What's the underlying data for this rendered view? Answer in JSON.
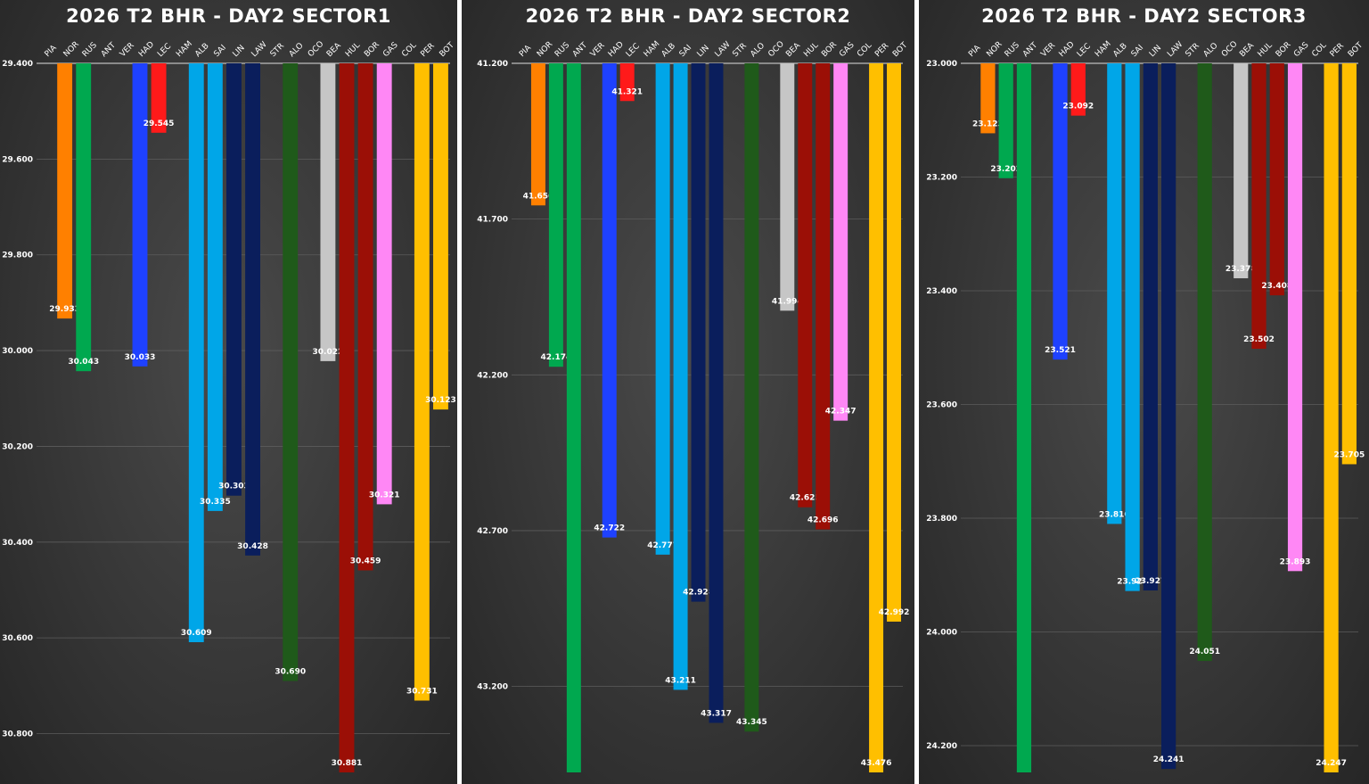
{
  "chart_data": [
    {
      "type": "bar",
      "title": "2026 T2 BHR - DAY2 SECTOR1",
      "categories": [
        "PIA",
        "NOR",
        "RUS",
        "ANT",
        "VER",
        "HAD",
        "LEC",
        "HAM",
        "ALB",
        "SAI",
        "LIN",
        "LAW",
        "STR",
        "ALO",
        "OCO",
        "BEA",
        "HUL",
        "BOR",
        "GAS",
        "COL",
        "PER",
        "BOT"
      ],
      "values": [
        null,
        29.933,
        30.043,
        null,
        null,
        30.033,
        29.545,
        null,
        30.609,
        30.335,
        30.303,
        30.428,
        null,
        30.69,
        null,
        30.022,
        30.881,
        30.459,
        30.321,
        null,
        30.731,
        30.123
      ],
      "value_labels": [
        "",
        "29.933",
        "30.043",
        "",
        "",
        "30.033",
        "29.545",
        "",
        "30.609",
        "30.335",
        "30.303",
        "30.428",
        "",
        "30.690",
        "",
        "30.022",
        "30.881",
        "30.459",
        "30.321",
        "",
        "30.731",
        "30.123"
      ],
      "colors": [
        "#ff8000",
        "#ff8000",
        "#00a84f",
        "#00a84f",
        "#1e41ff",
        "#1e41ff",
        "#ff1a1a",
        "#ff1a1a",
        "#00a6e8",
        "#00a6e8",
        "#0a1e5c",
        "#0a1e5c",
        "#1f5a1a",
        "#1f5a1a",
        "#c6c6c6",
        "#c6c6c6",
        "#9b0f06",
        "#9b0f06",
        "#ff87f5",
        "#ff87f5",
        "#ffbf00",
        "#ffbf00"
      ],
      "ylim": [
        29.4,
        30.881
      ],
      "yticks": [
        "29.400",
        "29.600",
        "29.800",
        "30.000",
        "30.200",
        "30.400",
        "30.600",
        "30.800"
      ],
      "y_inverted": true,
      "grid": true
    },
    {
      "type": "bar",
      "title": "2026 T2 BHR - DAY2 SECTOR2",
      "categories": [
        "PIA",
        "NOR",
        "RUS",
        "ANT",
        "VER",
        "HAD",
        "LEC",
        "HAM",
        "ALB",
        "SAI",
        "LIN",
        "LAW",
        "STR",
        "ALO",
        "OCO",
        "BEA",
        "HUL",
        "BOR",
        "GAS",
        "COL",
        "PER",
        "BOT"
      ],
      "values": [
        null,
        41.656,
        42.174,
        43.476,
        null,
        42.722,
        41.321,
        null,
        42.777,
        43.211,
        42.928,
        43.317,
        null,
        43.345,
        null,
        41.994,
        42.625,
        42.696,
        42.347,
        null,
        43.476,
        42.992
      ],
      "value_labels": [
        "",
        "41.656",
        "42.174",
        "",
        "",
        "42.722",
        "41.321",
        "",
        "42.777",
        "43.211",
        "42.928",
        "43.317",
        "",
        "43.345",
        "",
        "41.994",
        "42.625",
        "42.696",
        "42.347",
        "",
        "43.476",
        "42.992"
      ],
      "colors": [
        "#ff8000",
        "#ff8000",
        "#00a84f",
        "#00a84f",
        "#1e41ff",
        "#1e41ff",
        "#ff1a1a",
        "#ff1a1a",
        "#00a6e8",
        "#00a6e8",
        "#0a1e5c",
        "#0a1e5c",
        "#1f5a1a",
        "#1f5a1a",
        "#c6c6c6",
        "#c6c6c6",
        "#9b0f06",
        "#9b0f06",
        "#ff87f5",
        "#ff87f5",
        "#ffbf00",
        "#ffbf00"
      ],
      "ylim": [
        41.2,
        43.476
      ],
      "yticks": [
        "41.200",
        "41.700",
        "42.200",
        "42.700",
        "43.200"
      ],
      "y_inverted": true,
      "grid": true
    },
    {
      "type": "bar",
      "title": "2026 T2 BHR - DAY2 SECTOR3",
      "categories": [
        "PIA",
        "NOR",
        "RUS",
        "ANT",
        "VER",
        "HAD",
        "LEC",
        "HAM",
        "ALB",
        "SAI",
        "LIN",
        "LAW",
        "STR",
        "ALO",
        "OCO",
        "BEA",
        "HUL",
        "BOR",
        "GAS",
        "COL",
        "PER",
        "BOT"
      ],
      "values": [
        null,
        23.123,
        23.202,
        24.247,
        null,
        23.521,
        23.092,
        null,
        23.81,
        23.928,
        23.927,
        24.241,
        null,
        24.051,
        null,
        23.378,
        23.502,
        23.408,
        23.893,
        null,
        24.247,
        23.705
      ],
      "value_labels": [
        "",
        "23.123",
        "23.202",
        "",
        "",
        "23.521",
        "23.092",
        "",
        "23.810",
        "23.928",
        "23.927",
        "24.241",
        "",
        "24.051",
        "",
        "23.378",
        "23.502",
        "23.408",
        "23.893",
        "",
        "24.247",
        "23.705"
      ],
      "colors": [
        "#ff8000",
        "#ff8000",
        "#00a84f",
        "#00a84f",
        "#1e41ff",
        "#1e41ff",
        "#ff1a1a",
        "#ff1a1a",
        "#00a6e8",
        "#00a6e8",
        "#0a1e5c",
        "#0a1e5c",
        "#1f5a1a",
        "#1f5a1a",
        "#c6c6c6",
        "#c6c6c6",
        "#9b0f06",
        "#9b0f06",
        "#ff87f5",
        "#ff87f5",
        "#ffbf00",
        "#ffbf00"
      ],
      "ylim": [
        23.0,
        24.247
      ],
      "yticks": [
        "23.000",
        "23.200",
        "23.400",
        "23.600",
        "23.800",
        "24.000",
        "24.200"
      ],
      "y_inverted": true,
      "grid": true
    }
  ]
}
